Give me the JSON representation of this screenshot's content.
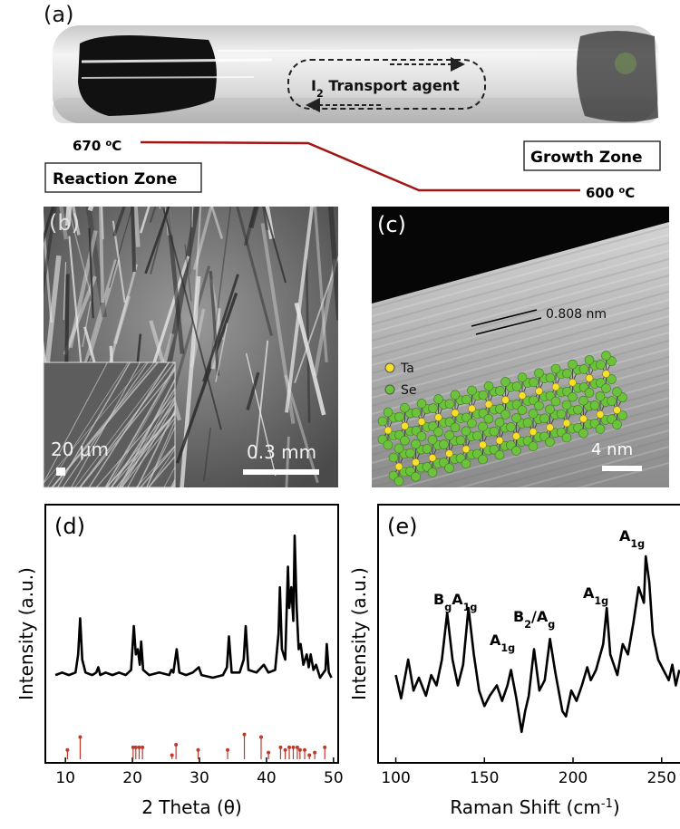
{
  "panel_a": {
    "label": "(a)",
    "agent": {
      "base": "I",
      "sub": "2",
      "rest": " Transport agent"
    },
    "hot": {
      "value": "670 ",
      "sup": "o",
      "unit": "C"
    },
    "cold": {
      "value": "600 ",
      "sup": "o",
      "unit": "C"
    },
    "reaction_zone": "Reaction Zone",
    "growth_zone": "Growth Zone"
  },
  "panel_b": {
    "label": "(b)",
    "scale": "0.3 mm",
    "inset_scale": "20 μm"
  },
  "panel_c": {
    "label": "(c)",
    "spacing": "0.808 nm",
    "legend": [
      "Ta",
      "Se"
    ],
    "scale": "4 nm"
  },
  "chart_data": [
    {
      "type": "line",
      "label": "(d)",
      "xlabel": "2 Theta (θ)",
      "ylabel": "Intensity (a.u.)",
      "color": "#000000",
      "x": [
        8.5,
        9.5,
        10.5,
        11.5,
        11.9,
        12.2,
        12.5,
        13,
        14,
        14.6,
        14.9,
        15.2,
        16,
        17,
        18,
        19,
        19.8,
        20.2,
        20.5,
        20.8,
        21.1,
        21.3,
        21.6,
        22.5,
        24,
        25.5,
        25.8,
        26.1,
        26.6,
        27,
        28,
        29,
        29.9,
        30.3,
        32,
        33.5,
        34.1,
        34.4,
        34.8,
        36,
        36.6,
        36.9,
        37.3,
        38.5,
        39.6,
        40.3,
        41.3,
        41.8,
        42.0,
        42.3,
        42.8,
        43.2,
        43.4,
        43.7,
        44.0,
        44.2,
        44.5,
        44.8,
        45.1,
        45.5,
        46,
        46.3,
        46.6,
        47,
        47.4,
        48,
        48.8,
        49,
        49.3,
        49.7
      ],
      "values": [
        34,
        35,
        34,
        35,
        42,
        56,
        40,
        35,
        34,
        35,
        37,
        34,
        35,
        34,
        35,
        34,
        36,
        53,
        42,
        44,
        38,
        47,
        36,
        34,
        35,
        34,
        36,
        35,
        44,
        35,
        34,
        35,
        37,
        34,
        33,
        34,
        37,
        49,
        35,
        35,
        40,
        53,
        36,
        35,
        38,
        35,
        36,
        50,
        68,
        44,
        40,
        76,
        60,
        68,
        55,
        88,
        60,
        44,
        46,
        38,
        42,
        37,
        42,
        36,
        38,
        33,
        36,
        46,
        35,
        33
      ],
      "reference": {
        "type": "stem",
        "color": "#c0392b",
        "x": [
          10.3,
          12.2,
          20.1,
          20.5,
          21.0,
          21.5,
          25.9,
          26.5,
          29.8,
          34.2,
          36.7,
          39.2,
          40.3,
          42.1,
          42.8,
          43.4,
          44.0,
          44.6,
          45.0,
          45.7,
          46.4,
          47.2,
          48.7
        ],
        "values": [
          5,
          10,
          6,
          6,
          6,
          6,
          3,
          7,
          5,
          5,
          11,
          10,
          4,
          6,
          5,
          6,
          6,
          6,
          5,
          5,
          3,
          4,
          6
        ]
      },
      "xlim": [
        7,
        50.7
      ],
      "ylim": [
        0,
        100
      ],
      "xticks": [
        10,
        20,
        30,
        40,
        50
      ]
    },
    {
      "type": "line",
      "label": "(e)",
      "xlabel": "Raman Shift (cm",
      "xlabel_sup": "-1",
      "xlabel_end": ")",
      "ylabel": "Intensity (a.u.)",
      "color": "#000000",
      "x": [
        100,
        103,
        107,
        110,
        113,
        117,
        120,
        123,
        126,
        129,
        132,
        135,
        138,
        141,
        144,
        147,
        150,
        153,
        157,
        160,
        163,
        165,
        168,
        171,
        173,
        175,
        178,
        181,
        184,
        187,
        190,
        194,
        196,
        199,
        202,
        205,
        208,
        210,
        213,
        217,
        219,
        221,
        223,
        225,
        228,
        231,
        234,
        237,
        240,
        241,
        243,
        245,
        248,
        251,
        254,
        256,
        258,
        260
      ],
      "values": [
        34,
        25,
        40,
        28,
        33,
        26,
        34,
        30,
        40,
        58,
        40,
        30,
        38,
        60,
        42,
        28,
        22,
        26,
        30,
        24,
        30,
        36,
        25,
        12,
        20,
        26,
        44,
        28,
        32,
        48,
        35,
        20,
        18,
        28,
        24,
        30,
        37,
        32,
        36,
        46,
        60,
        42,
        38,
        34,
        46,
        42,
        54,
        68,
        62,
        80,
        70,
        50,
        40,
        36,
        32,
        38,
        30,
        36
      ],
      "annotations": [
        [
          "B",
          {
            "sub": "g"
          },
          "A",
          {
            "sub": "1g"
          }
        ],
        [
          "A",
          {
            "sub": "1g"
          }
        ],
        [
          "B",
          {
            "sub": "2"
          },
          "/A",
          {
            "sub": "g"
          }
        ],
        [
          "A",
          {
            "sub": "1g"
          }
        ],
        [
          "A",
          {
            "sub": "1g"
          }
        ]
      ],
      "xlim": [
        90,
        267
      ],
      "ylim": [
        0,
        100
      ],
      "xticks": [
        100,
        150,
        200,
        250
      ]
    }
  ]
}
